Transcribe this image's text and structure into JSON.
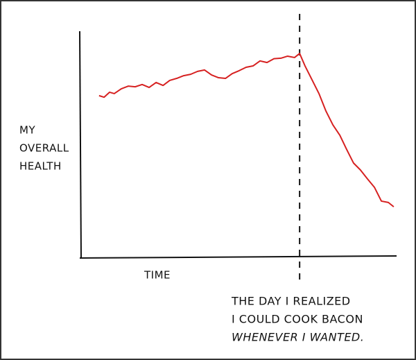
{
  "chart_data": {
    "type": "line",
    "y_label": [
      "MY",
      "OVERALL",
      "HEALTH"
    ],
    "x_label": "TIME",
    "xlim": [
      0,
      100
    ],
    "ylim": [
      0,
      100
    ],
    "x": [
      6.1,
      7.7,
      9.4,
      10.9,
      13.1,
      15.3,
      17.5,
      19.7,
      21.9,
      24.1,
      26.3,
      28.4,
      30.6,
      32.8,
      35.0,
      37.2,
      39.4,
      41.6,
      43.8,
      46.0,
      48.1,
      50.3,
      52.5,
      54.7,
      56.9,
      59.1,
      61.3,
      63.5,
      65.6,
      67.8,
      69.4,
      71.1,
      73.3,
      75.5,
      77.7,
      79.9,
      82.1,
      84.2,
      86.4,
      88.6,
      90.8,
      93.0,
      95.2,
      97.4,
      99.1
    ],
    "series": [
      {
        "color": "#d62020",
        "values": [
          71.6,
          70.9,
          73.1,
          72.5,
          74.6,
          75.8,
          75.5,
          76.5,
          75.2,
          77.4,
          76.1,
          78.3,
          79.2,
          80.4,
          81.0,
          82.3,
          82.9,
          80.7,
          79.5,
          79.2,
          81.3,
          82.6,
          84.1,
          84.7,
          86.9,
          86.2,
          87.9,
          88.1,
          89.0,
          88.4,
          90.2,
          84.7,
          78.6,
          72.5,
          64.8,
          58.7,
          54.1,
          48.0,
          41.9,
          38.8,
          34.9,
          31.2,
          25.1,
          24.5,
          22.6
        ]
      }
    ],
    "annotation": {
      "x": 69.4,
      "lines": [
        "THE DAY I REALIZED",
        "I COULD COOK BACON",
        "WHENEVER I WANTED."
      ]
    }
  }
}
